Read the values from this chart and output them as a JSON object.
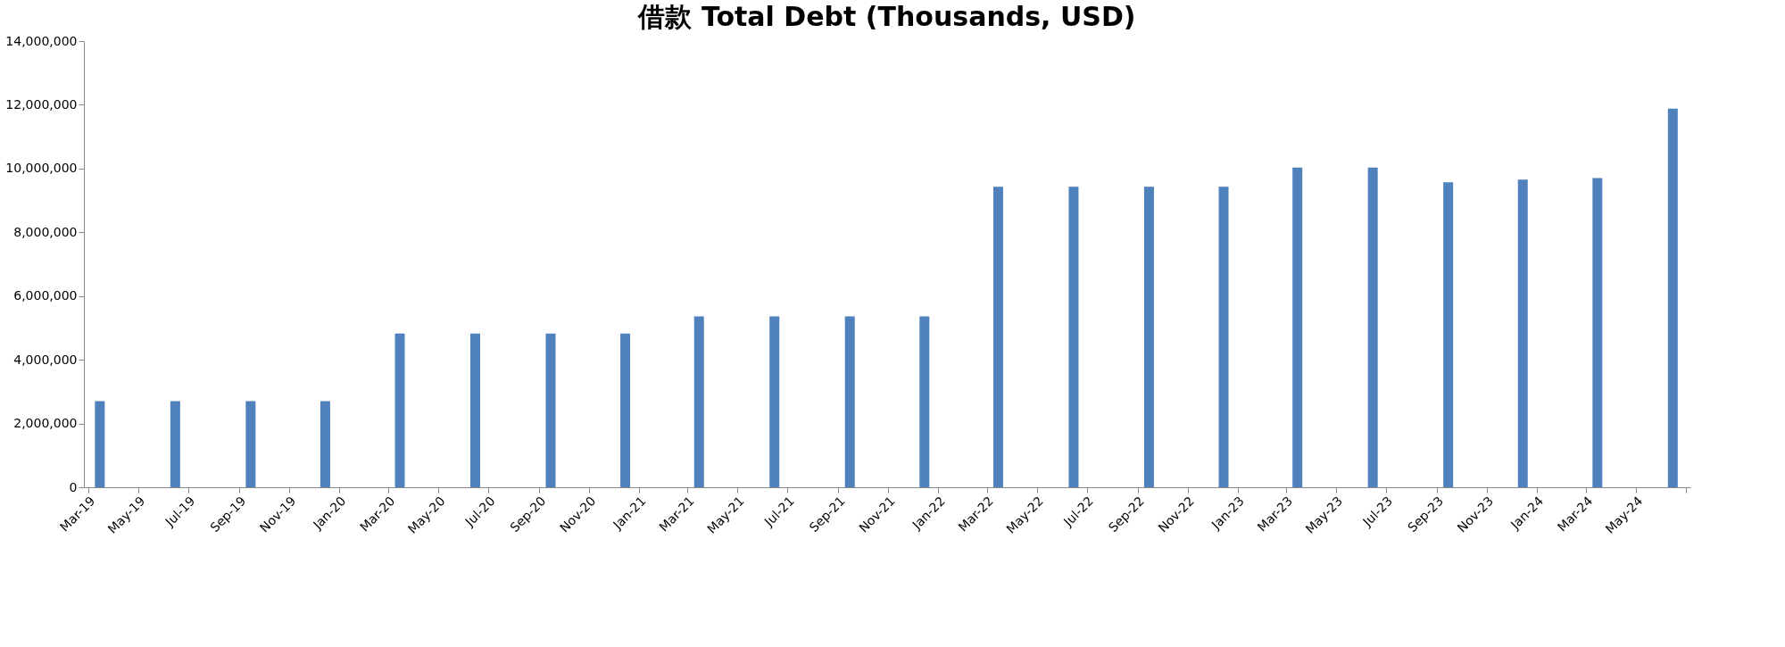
{
  "chart_data": {
    "type": "bar",
    "title": "借款 Total Debt (Thousands, USD)",
    "x": [
      "2019-03-15",
      "2019-06-15",
      "2019-09-15",
      "2019-12-15",
      "2020-03-15",
      "2020-06-15",
      "2020-09-15",
      "2020-12-15",
      "2021-03-15",
      "2021-06-15",
      "2021-09-15",
      "2021-12-15",
      "2022-03-15",
      "2022-06-15",
      "2022-09-15",
      "2022-12-15",
      "2023-03-15",
      "2023-06-15",
      "2023-09-15",
      "2023-12-15",
      "2024-03-15",
      "2024-06-15"
    ],
    "values": [
      2700000,
      2700000,
      2700000,
      2700000,
      4820000,
      4820000,
      4820000,
      4820000,
      5360000,
      5360000,
      5360000,
      5360000,
      9430000,
      9430000,
      9430000,
      9430000,
      10030000,
      10030000,
      9570000,
      9650000,
      9700000,
      11880000
    ],
    "color": "#4f81bd",
    "ylim": [
      0,
      14000000
    ],
    "yticks": [
      0,
      {
        "value": 2000000,
        "label": "2,000,000"
      },
      {
        "value": 4000000,
        "label": "4,000,000"
      },
      {
        "value": 6000000,
        "label": "6,000,000"
      },
      {
        "value": 8000000,
        "label": "8,000,000"
      },
      {
        "value": 10000000,
        "label": "10,000,000"
      },
      {
        "value": 12000000,
        "label": "12,000,000"
      },
      {
        "value": 14000000,
        "label": "14,000,000"
      }
    ],
    "xlim": [
      "2019-03",
      "2024-07"
    ],
    "xticks": [
      {
        "value": "2019-03",
        "label": "Mar-19"
      },
      {
        "value": "2019-05",
        "label": "May-19"
      },
      {
        "value": "2019-07",
        "label": "Jul-19"
      },
      {
        "value": "2019-09",
        "label": "Sep-19"
      },
      {
        "value": "2019-11",
        "label": "Nov-19"
      },
      {
        "value": "2020-01",
        "label": "Jan-20"
      },
      {
        "value": "2020-03",
        "label": "Mar-20"
      },
      {
        "value": "2020-05",
        "label": "May-20"
      },
      {
        "value": "2020-07",
        "label": "Jul-20"
      },
      {
        "value": "2020-09",
        "label": "Sep-20"
      },
      {
        "value": "2020-11",
        "label": "Nov-20"
      },
      {
        "value": "2021-01",
        "label": "Jan-21"
      },
      {
        "value": "2021-03",
        "label": "Mar-21"
      },
      {
        "value": "2021-05",
        "label": "May-21"
      },
      {
        "value": "2021-07",
        "label": "Jul-21"
      },
      {
        "value": "2021-09",
        "label": "Sep-21"
      },
      {
        "value": "2021-11",
        "label": "Nov-21"
      },
      {
        "value": "2022-01",
        "label": "Jan-22"
      },
      {
        "value": "2022-03",
        "label": "Mar-22"
      },
      {
        "value": "2022-05",
        "label": "May-22"
      },
      {
        "value": "2022-07",
        "label": "Jul-22"
      },
      {
        "value": "2022-09",
        "label": "Sep-22"
      },
      {
        "value": "2022-11",
        "label": "Nov-22"
      },
      {
        "value": "2023-01",
        "label": "Jan-23"
      },
      {
        "value": "2023-03",
        "label": "Mar-23"
      },
      {
        "value": "2023-05",
        "label": "May-23"
      },
      {
        "value": "2023-07",
        "label": "Jul-23"
      },
      {
        "value": "2023-09",
        "label": "Sep-23"
      },
      {
        "value": "2023-11",
        "label": "Nov-23"
      },
      {
        "value": "2024-01",
        "label": "Jan-24"
      },
      {
        "value": "2024-03",
        "label": "Mar-24"
      },
      {
        "value": "2024-05",
        "label": "May-24"
      },
      {
        "value": "2024-07",
        "label": null
      }
    ],
    "grid": false
  }
}
